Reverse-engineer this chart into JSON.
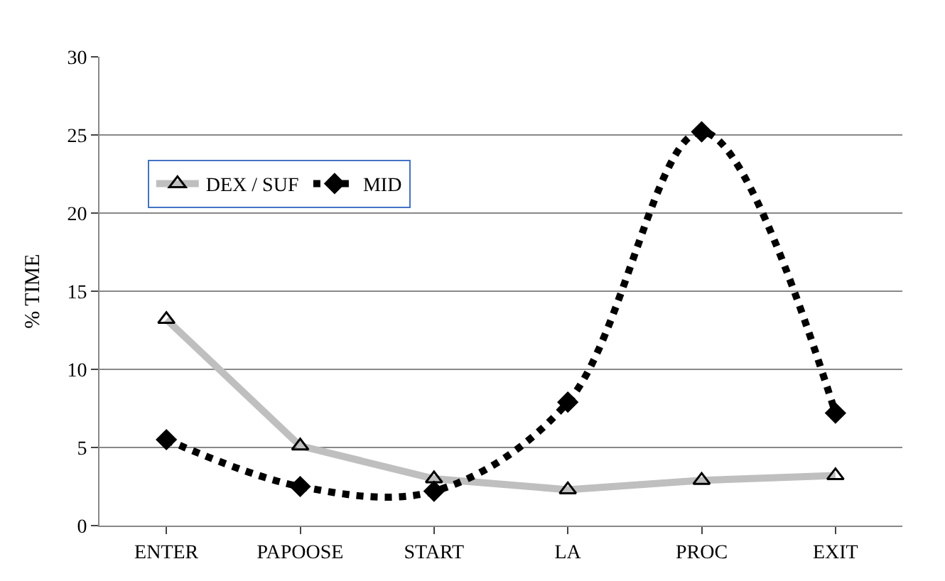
{
  "chart_data": {
    "type": "line",
    "ylabel": "% TIME",
    "categories": [
      "ENTER",
      "PAPOOSE",
      "START",
      "LA",
      "PROC",
      "EXIT"
    ],
    "series": [
      {
        "name": "DEX / SUF",
        "color": "#bfbfbf",
        "marker": "triangle",
        "line_style": "solid",
        "values": [
          13.2,
          5.1,
          3.0,
          2.3,
          2.9,
          3.2
        ]
      },
      {
        "name": "MID",
        "color": "#000000",
        "marker": "diamond",
        "line_style": "dotted",
        "values": [
          5.5,
          2.5,
          2.2,
          7.9,
          25.2,
          7.2
        ]
      }
    ],
    "ylim": [
      0,
      30
    ],
    "yticks": [
      0,
      5,
      10,
      15,
      20,
      25,
      30
    ],
    "grid": "y",
    "legend": "top left"
  }
}
